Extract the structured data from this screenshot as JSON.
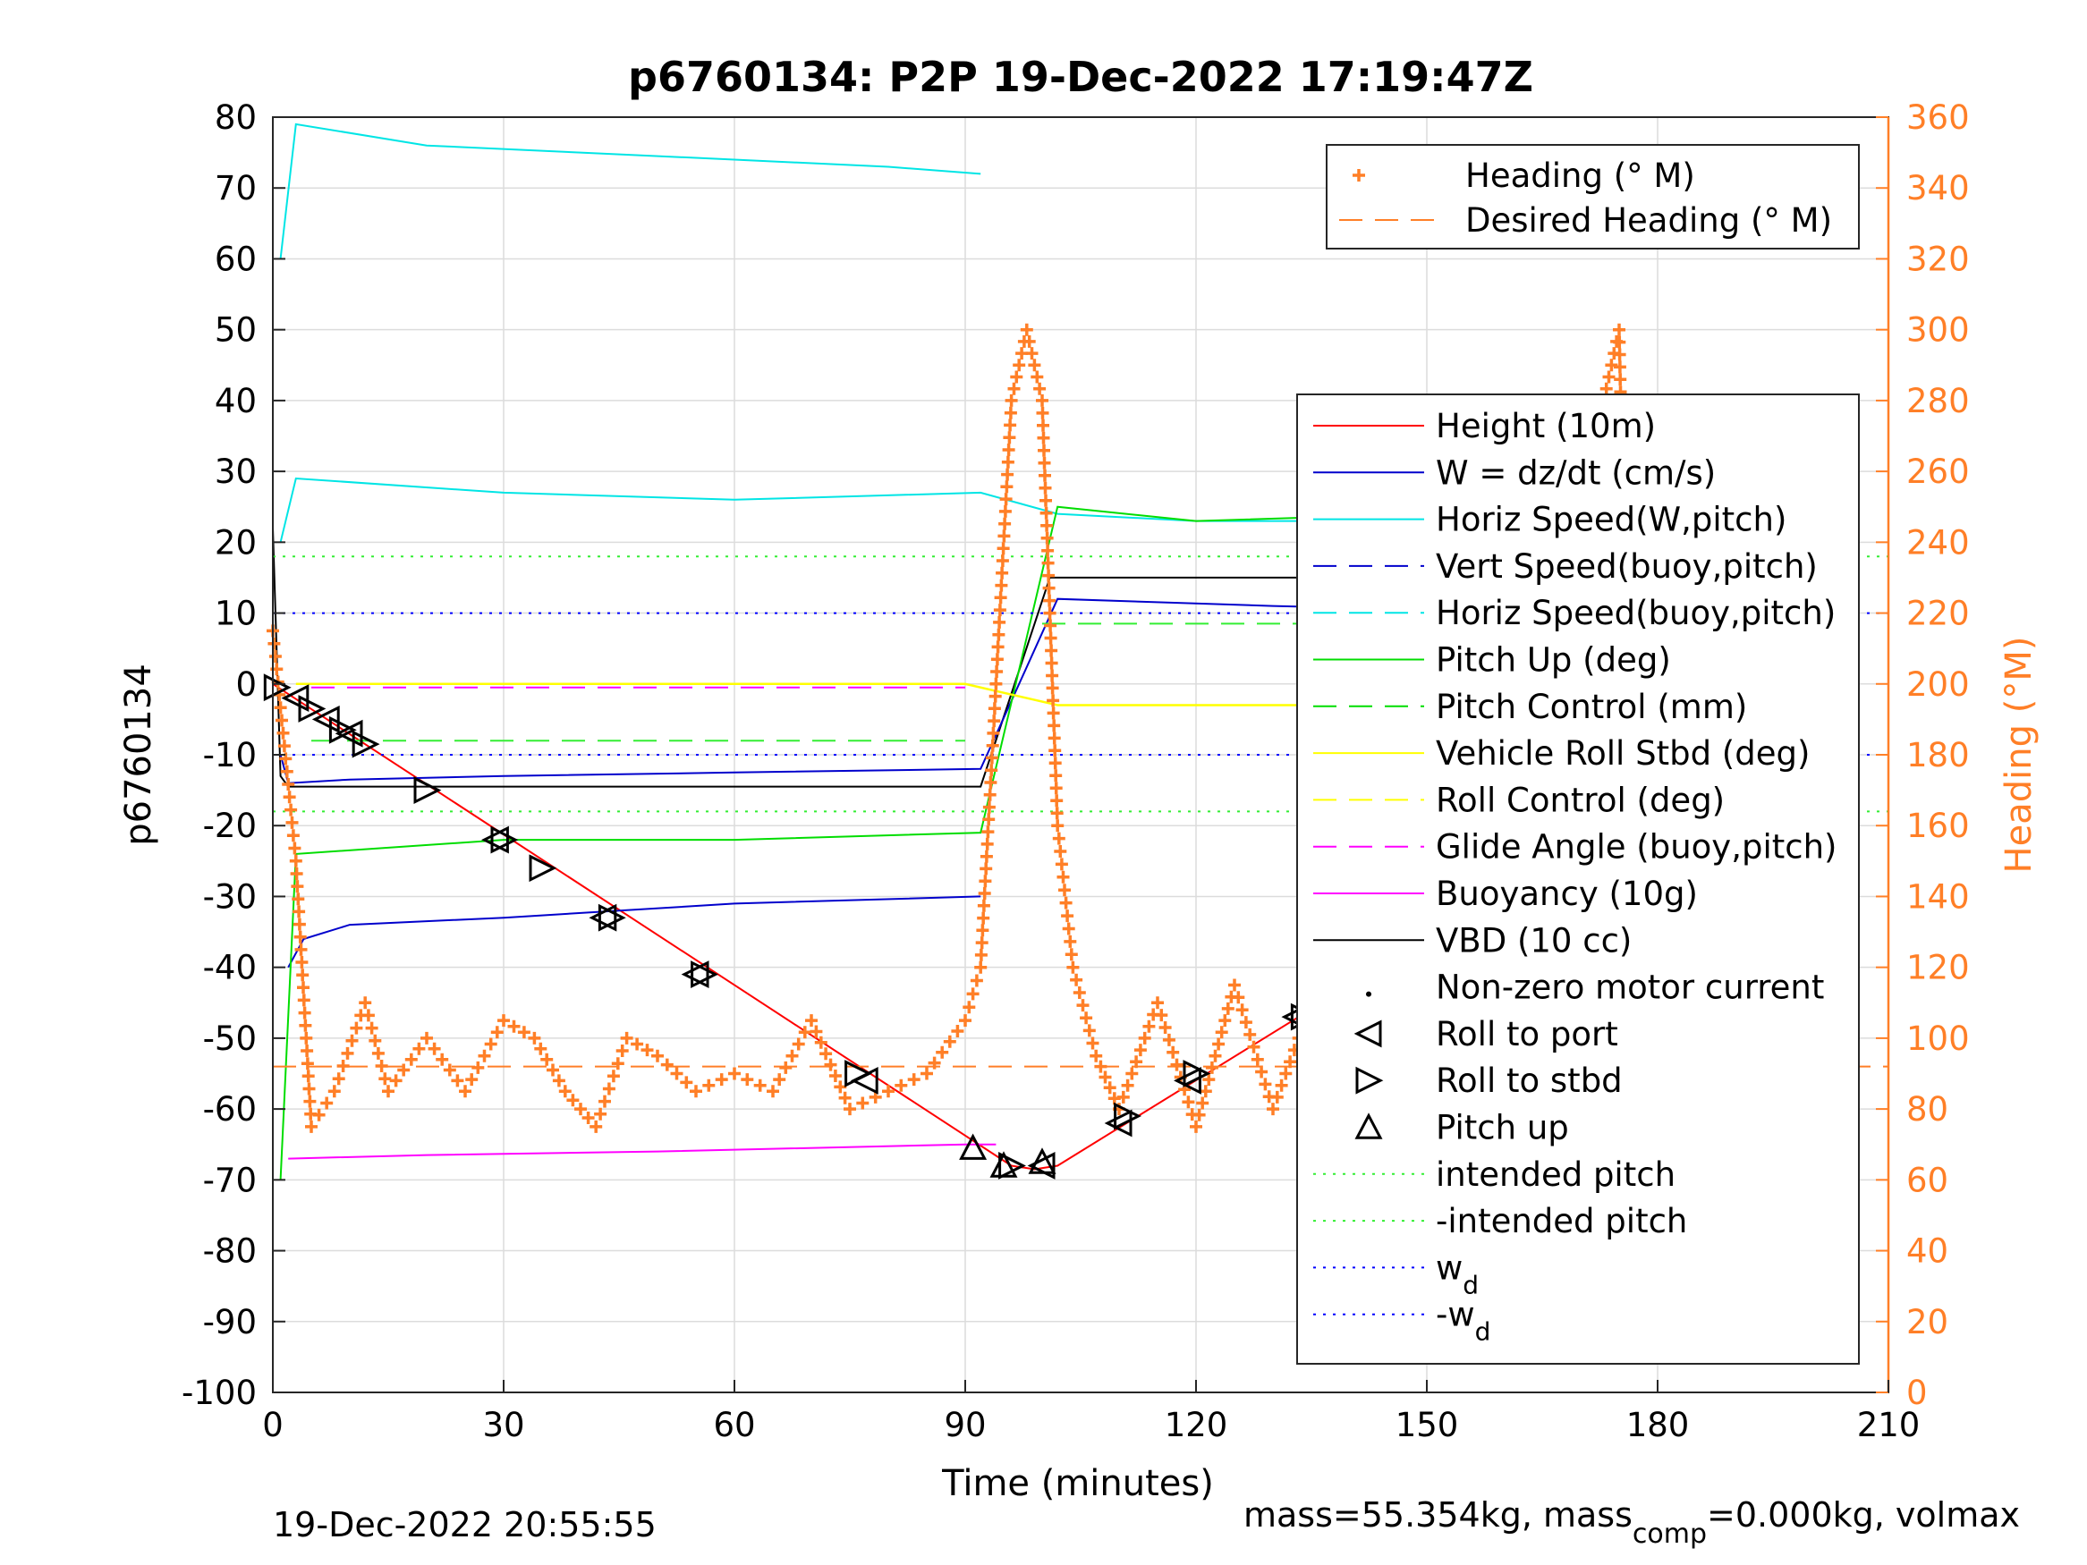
{
  "chart_data": {
    "type": "line",
    "title": "p6760134: P2P 19-Dec-2022 17:19:47Z",
    "xlabel": "Time (minutes)",
    "ylabel": "p6760134",
    "y2label": "Heading (°M)",
    "xlim": [
      0,
      210
    ],
    "ylim": [
      -100,
      80
    ],
    "y2lim": [
      0,
      360
    ],
    "grid": true,
    "xticks": [
      "0",
      "30",
      "60",
      "90",
      "120",
      "150",
      "180",
      "210"
    ],
    "yticks": [
      "80",
      "70",
      "60",
      "50",
      "40",
      "30",
      "20",
      "10",
      "0",
      "-10",
      "-20",
      "-30",
      "-40",
      "-50",
      "-60",
      "-70",
      "-80",
      "-90",
      "-100"
    ],
    "y2ticks": [
      "360",
      "340",
      "320",
      "300",
      "280",
      "260",
      "240",
      "220",
      "200",
      "180",
      "160",
      "140",
      "120",
      "100",
      "80",
      "60",
      "40",
      "20",
      "0"
    ],
    "colors": {
      "heading": "#ff7f27",
      "height": "#ff0000",
      "w": "#0000cc",
      "horiz_speed": "#00e5e5",
      "pitch": "#00dd00",
      "roll": "#ffff00",
      "glide": "#ff00ff",
      "vbd": "#000000",
      "intended": "#33ee33",
      "wd": "#0000ff"
    },
    "legend_top": [
      {
        "label": "Heading (° M)"
      },
      {
        "label": "Desired Heading (° M)"
      }
    ],
    "legend_main": [
      {
        "label": "Height (10m)"
      },
      {
        "label": "W = dz/dt (cm/s)"
      },
      {
        "label": "Horiz Speed(W,pitch)"
      },
      {
        "label": "Vert Speed(buoy,pitch)"
      },
      {
        "label": "Horiz Speed(buoy,pitch)"
      },
      {
        "label": "Pitch Up (deg)"
      },
      {
        "label": "Pitch Control (mm)"
      },
      {
        "label": "Vehicle Roll Stbd (deg)"
      },
      {
        "label": "Roll Control (deg)"
      },
      {
        "label": "Glide Angle (buoy,pitch)"
      },
      {
        "label": "Buoyancy (10g)"
      },
      {
        "label": "VBD (10 cc)"
      },
      {
        "label": "Non-zero motor current"
      },
      {
        "label": "Roll to port"
      },
      {
        "label": "Roll to stbd"
      },
      {
        "label": "Pitch up"
      },
      {
        "label": "intended pitch"
      },
      {
        "label": "-intended pitch"
      },
      {
        "label": "w",
        "sub": "d"
      },
      {
        "label": "-w",
        "sub": "d"
      }
    ],
    "series": [
      {
        "name": "Height (10m)",
        "x": [
          0,
          96,
          99,
          102,
          202
        ],
        "y": [
          0,
          -68,
          -68.5,
          -68,
          -1
        ]
      },
      {
        "name": "VBD (10 cc)",
        "x": [
          0,
          1,
          2,
          92,
          101,
          203
        ],
        "y": [
          22,
          -13,
          -14.5,
          -14.5,
          15,
          15
        ]
      },
      {
        "name": "W = dz/dt (cm/s)",
        "x": [
          1,
          2,
          10,
          30,
          60,
          92,
          97,
          102,
          130,
          150,
          170,
          200,
          203
        ],
        "y": [
          -10,
          -14,
          -13.5,
          -13,
          -12.5,
          -12,
          0,
          12,
          11,
          10.5,
          11,
          11,
          12
        ]
      },
      {
        "name": "W negative branch",
        "x": [
          2,
          4,
          10,
          30,
          60,
          92
        ],
        "y": [
          -40,
          -36,
          -34,
          -33,
          -31,
          -30
        ]
      },
      {
        "name": "Horiz Speed(W,pitch)",
        "x": [
          1,
          3,
          30,
          60,
          92,
          102,
          120,
          150,
          180,
          203
        ],
        "y": [
          20,
          29,
          27,
          26,
          27,
          24,
          23,
          23,
          22,
          21
        ]
      },
      {
        "name": "Horiz Speed(buoy,pitch)",
        "x": [
          1,
          3,
          20,
          40,
          60,
          80,
          92
        ],
        "y": [
          60,
          79,
          76,
          75,
          74,
          73,
          72
        ]
      },
      {
        "name": "Pitch Up (deg)",
        "x": [
          1,
          3,
          30,
          60,
          92,
          102,
          120,
          150,
          180,
          203
        ],
        "y": [
          -70,
          -24,
          -22,
          -22,
          -21,
          25,
          23,
          24,
          23,
          22
        ]
      },
      {
        "name": "Buoyancy (10g)",
        "x": [
          2,
          20,
          50,
          90,
          94
        ],
        "y": [
          -67,
          -66.5,
          -66,
          -65,
          -65
        ]
      },
      {
        "name": "intended pitch",
        "x": [
          0,
          210
        ],
        "y": [
          18,
          18
        ]
      },
      {
        "name": "-intended pitch",
        "x": [
          0,
          210
        ],
        "y": [
          -18,
          -18
        ]
      },
      {
        "name": "w_d",
        "x": [
          0,
          210
        ],
        "y": [
          10,
          10
        ]
      },
      {
        "name": "-w_d",
        "x": [
          0,
          210
        ],
        "y": [
          -10,
          -10
        ]
      },
      {
        "name": "Glide Angle (buoy,pitch)",
        "x": [
          5,
          90
        ],
        "y": [
          -0.5,
          -0.5
        ]
      },
      {
        "name": "Pitch Control (mm)",
        "x": [
          5,
          90
        ],
        "y": [
          -8,
          -8
        ]
      },
      {
        "name": "Pitch Control (mm) climb",
        "x": [
          100,
          205
        ],
        "y": [
          8.5,
          8.5
        ]
      },
      {
        "name": "Roll Control (deg)",
        "x": [
          3,
          90,
          102,
          205
        ],
        "y": [
          0,
          0,
          -3,
          -3
        ]
      },
      {
        "name": "Desired Heading (° M)",
        "x": [
          0,
          210
        ],
        "y2": [
          92,
          92
        ]
      },
      {
        "name": "Heading (° M)",
        "x": [
          0,
          3,
          5,
          8,
          12,
          15,
          20,
          25,
          30,
          34,
          38,
          42,
          46,
          50,
          55,
          60,
          65,
          70,
          75,
          80,
          85,
          90,
          92,
          94,
          96,
          98,
          100,
          102,
          104,
          107,
          110,
          115,
          120,
          125,
          130,
          135,
          140,
          145,
          150,
          155,
          160,
          165,
          170,
          173,
          175,
          177,
          180,
          185,
          190,
          195,
          200,
          203
        ],
        "y2": [
          215,
          150,
          75,
          85,
          110,
          85,
          100,
          85,
          105,
          100,
          85,
          75,
          100,
          95,
          85,
          90,
          85,
          105,
          80,
          85,
          90,
          105,
          120,
          200,
          280,
          300,
          280,
          160,
          120,
          95,
          80,
          110,
          75,
          115,
          80,
          110,
          75,
          120,
          70,
          110,
          95,
          115,
          75,
          280,
          300,
          100,
          110,
          85,
          105,
          80,
          100,
          80
        ]
      }
    ],
    "markers": {
      "roll_to_stbd": [
        [
          0.5,
          -0.5
        ],
        [
          5,
          -3.5
        ],
        [
          9,
          -6.5
        ],
        [
          12,
          -8.5
        ],
        [
          20,
          -15
        ],
        [
          30,
          -22
        ],
        [
          35,
          -26
        ],
        [
          44,
          -33
        ],
        [
          56,
          -41
        ],
        [
          76,
          -55
        ],
        [
          96,
          -68
        ],
        [
          111,
          -61
        ],
        [
          120,
          -55
        ],
        [
          134,
          -47
        ],
        [
          142,
          -40
        ],
        [
          147,
          -37
        ],
        [
          156,
          -31
        ],
        [
          164,
          -26
        ],
        [
          174,
          -18
        ],
        [
          180,
          -14
        ],
        [
          189,
          -9
        ],
        [
          194,
          -6
        ],
        [
          202,
          -1
        ]
      ],
      "roll_to_port": [
        [
          3,
          -2
        ],
        [
          7,
          -5
        ],
        [
          10,
          -7
        ],
        [
          29,
          -22
        ],
        [
          43,
          -33
        ],
        [
          55,
          -41
        ],
        [
          77,
          -56
        ],
        [
          100,
          -68
        ],
        [
          110,
          -62
        ],
        [
          119,
          -56
        ],
        [
          133,
          -47
        ],
        [
          141,
          -41
        ],
        [
          145,
          -38
        ],
        [
          155,
          -32
        ],
        [
          163,
          -27
        ],
        [
          172,
          -20
        ],
        [
          179,
          -15
        ],
        [
          187,
          -10
        ],
        [
          192,
          -7
        ],
        [
          201,
          -2
        ]
      ],
      "pitch_up": [
        [
          91,
          -65.5
        ],
        [
          95,
          -68
        ],
        [
          100,
          -67.5
        ],
        [
          142,
          -41.5
        ]
      ]
    }
  },
  "footer": {
    "timestamp": "19-Dec-2022 20:55:55",
    "mass_text": "mass=55.354kg, mass",
    "mass_sub": "comp",
    "mass_rest": "=0.000kg, volmax"
  }
}
